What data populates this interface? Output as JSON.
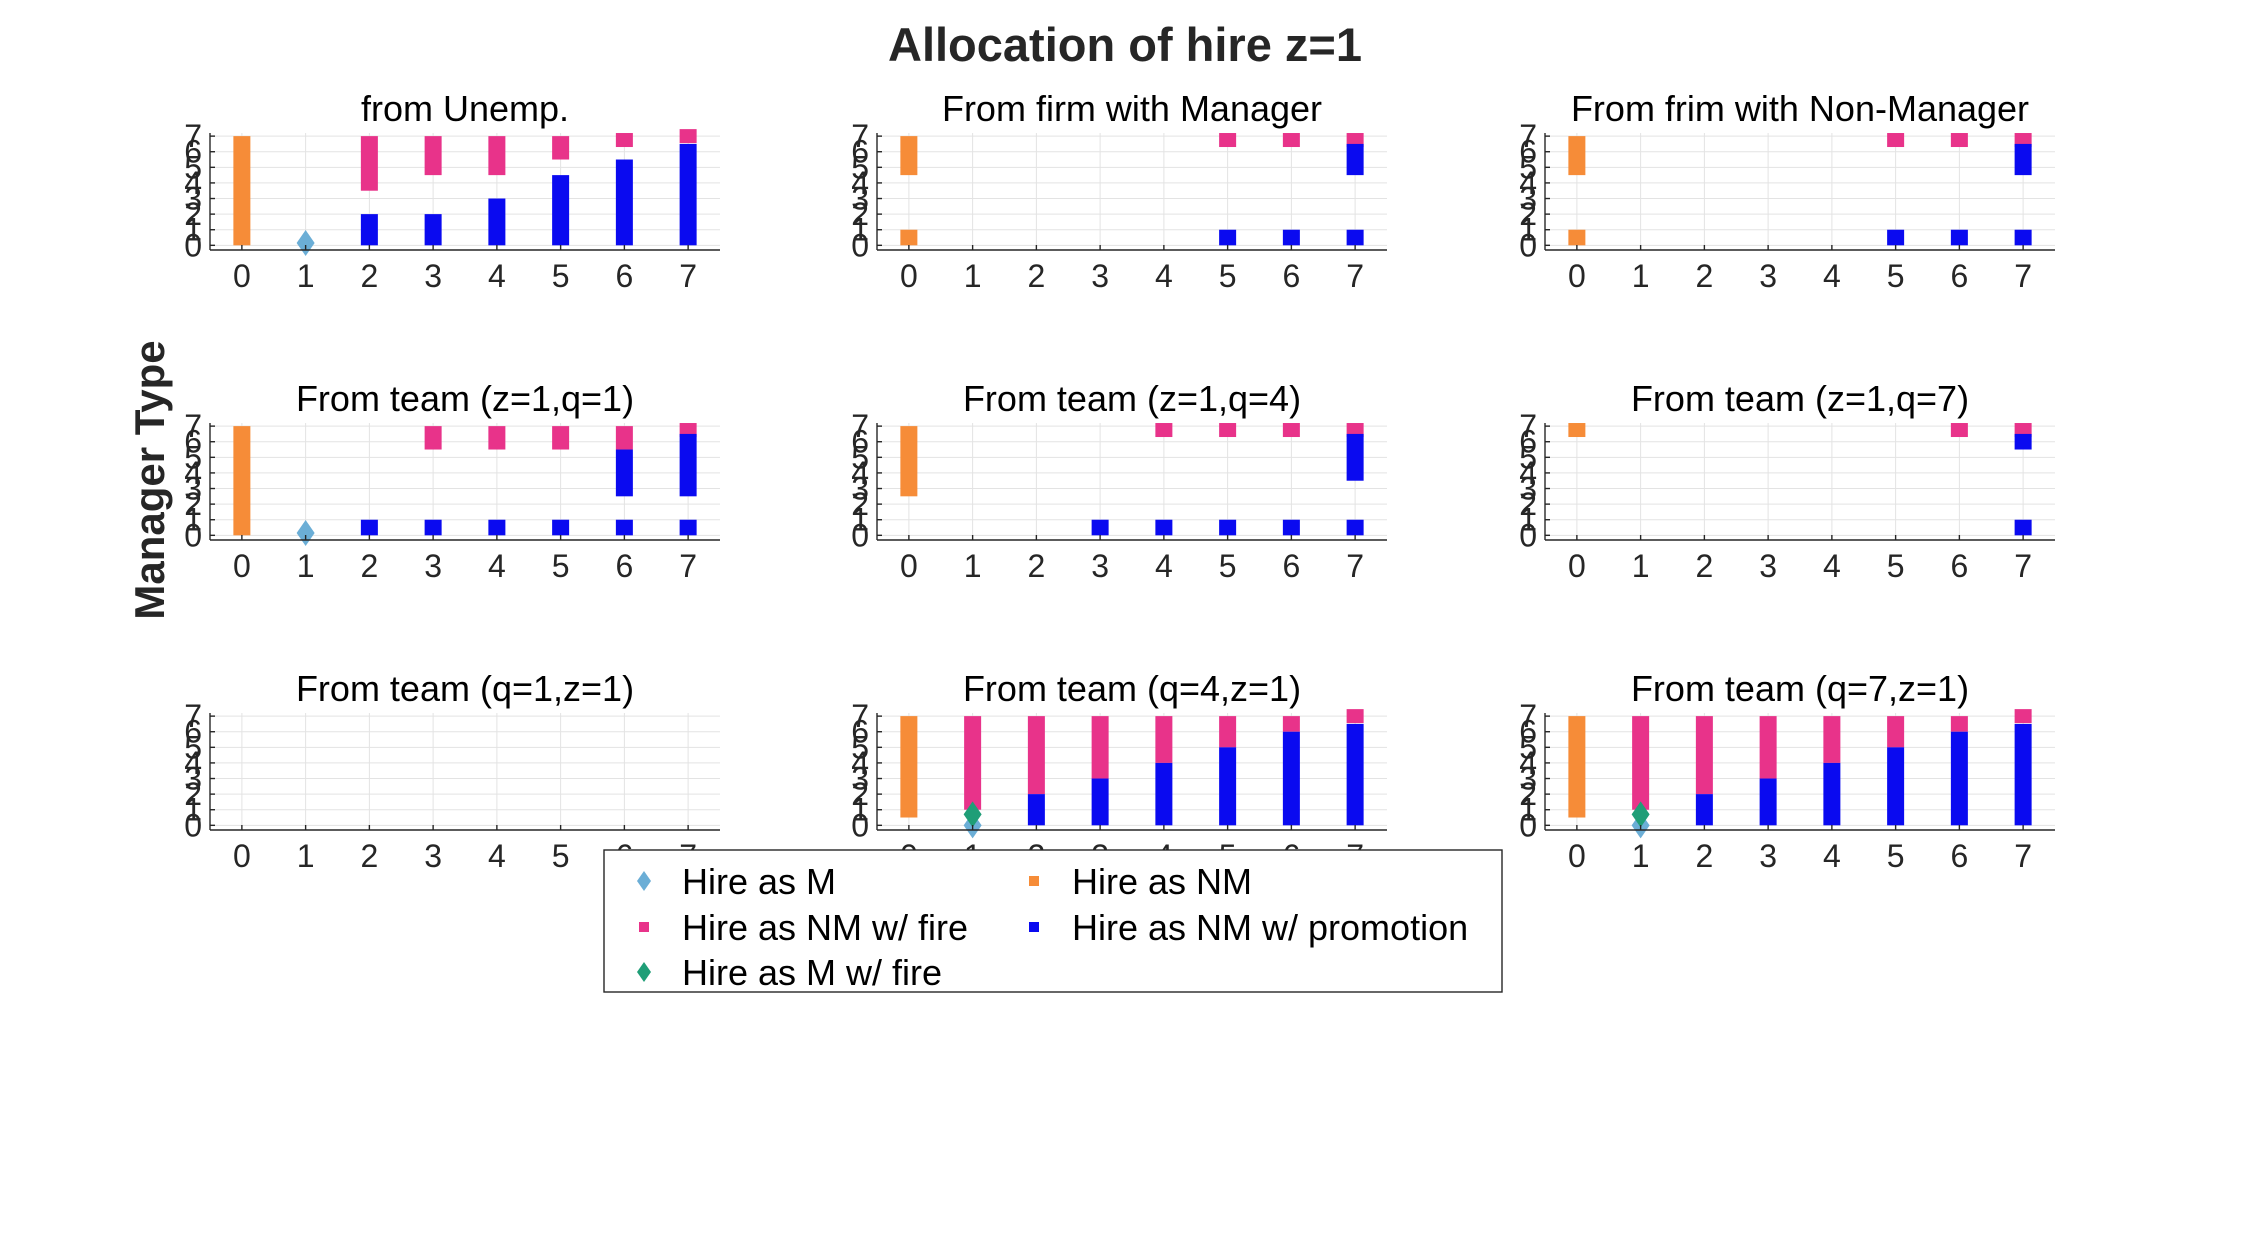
{
  "figure": {
    "title": "Allocation of hire z=1",
    "ylabel": "Manager Type"
  },
  "legend": {
    "placement": "bottom-center",
    "entries": [
      {
        "key": "m",
        "label": "Hire as M",
        "marker": "diamond",
        "color": "#6BAED6"
      },
      {
        "key": "nm",
        "label": "Hire as NM",
        "marker": "square",
        "color": "#F68C38"
      },
      {
        "key": "nmfire",
        "label": "Hire as NM w/ fire",
        "marker": "square",
        "color": "#E8338A"
      },
      {
        "key": "nmpromo",
        "label": "Hire as NM w/ promotion",
        "marker": "square",
        "color": "#0A0AF0"
      },
      {
        "key": "mfire",
        "label": "Hire as M w/ fire",
        "marker": "diamond",
        "color": "#1F9E77"
      }
    ]
  },
  "chart_data": [
    {
      "type": "scatter",
      "title": "from Unemp.",
      "xlim": [
        -0.5,
        7.5
      ],
      "ylim": [
        -0.3,
        7.2
      ],
      "xticks": [
        0,
        1,
        2,
        3,
        4,
        5,
        6,
        7
      ],
      "yticks": [
        0,
        1,
        2,
        3,
        4,
        5,
        6,
        7
      ],
      "grid": true,
      "series": [
        {
          "key": "nm",
          "segments": [
            [
              0,
              0,
              7
            ]
          ]
        },
        {
          "key": "nmfire",
          "segments": [
            [
              2,
              3.5,
              7
            ],
            [
              3,
              4.5,
              7
            ],
            [
              4,
              4.5,
              7
            ],
            [
              5,
              5.5,
              7
            ],
            [
              6,
              6.5,
              7
            ],
            [
              7,
              7,
              7
            ]
          ]
        },
        {
          "key": "nmpromo",
          "segments": [
            [
              2,
              0,
              2
            ],
            [
              3,
              0,
              2
            ],
            [
              4,
              0,
              3
            ],
            [
              5,
              0,
              4.5
            ],
            [
              6,
              0,
              5.5
            ],
            [
              7,
              0,
              6.5
            ]
          ]
        },
        {
          "key": "m",
          "points": [
            [
              1,
              0.15
            ]
          ]
        }
      ]
    },
    {
      "type": "scatter",
      "title": "From firm with Manager",
      "xlim": [
        -0.5,
        7.5
      ],
      "ylim": [
        -0.3,
        7.2
      ],
      "xticks": [
        0,
        1,
        2,
        3,
        4,
        5,
        6,
        7
      ],
      "yticks": [
        0,
        1,
        2,
        3,
        4,
        5,
        6,
        7
      ],
      "grid": true,
      "series": [
        {
          "key": "nm",
          "segments": [
            [
              0,
              0,
              1
            ],
            [
              0,
              4.5,
              7
            ]
          ]
        },
        {
          "key": "nmfire",
          "segments": [
            [
              5,
              6.5,
              7
            ],
            [
              6,
              6.5,
              7
            ],
            [
              7,
              6.5,
              7
            ]
          ]
        },
        {
          "key": "nmpromo",
          "segments": [
            [
              5,
              0,
              1
            ],
            [
              6,
              0,
              1
            ],
            [
              7,
              0,
              1
            ],
            [
              7,
              4.5,
              6.5
            ]
          ]
        }
      ]
    },
    {
      "type": "scatter",
      "title": "From frim with Non-Manager",
      "xlim": [
        -0.5,
        7.5
      ],
      "ylim": [
        -0.3,
        7.2
      ],
      "xticks": [
        0,
        1,
        2,
        3,
        4,
        5,
        6,
        7
      ],
      "yticks": [
        0,
        1,
        2,
        3,
        4,
        5,
        6,
        7
      ],
      "grid": true,
      "series": [
        {
          "key": "nm",
          "segments": [
            [
              0,
              0,
              1
            ],
            [
              0,
              4.5,
              7
            ]
          ]
        },
        {
          "key": "nmfire",
          "segments": [
            [
              5,
              6.5,
              7
            ],
            [
              6,
              6.5,
              7
            ],
            [
              7,
              6.5,
              7
            ]
          ]
        },
        {
          "key": "nmpromo",
          "segments": [
            [
              5,
              0,
              1
            ],
            [
              6,
              0,
              1
            ],
            [
              7,
              0,
              1
            ],
            [
              7,
              4.5,
              6.5
            ]
          ]
        }
      ]
    },
    {
      "type": "scatter",
      "title": "From team (z=1,q=1)",
      "xlim": [
        -0.5,
        7.5
      ],
      "ylim": [
        -0.3,
        7.2
      ],
      "xticks": [
        0,
        1,
        2,
        3,
        4,
        5,
        6,
        7
      ],
      "yticks": [
        0,
        1,
        2,
        3,
        4,
        5,
        6,
        7
      ],
      "grid": true,
      "series": [
        {
          "key": "nm",
          "segments": [
            [
              0,
              0,
              7
            ]
          ]
        },
        {
          "key": "nmfire",
          "segments": [
            [
              3,
              5.5,
              7
            ],
            [
              4,
              5.5,
              7
            ],
            [
              5,
              5.5,
              7
            ],
            [
              6,
              5.5,
              7
            ],
            [
              7,
              6.5,
              7
            ]
          ]
        },
        {
          "key": "nmpromo",
          "segments": [
            [
              2,
              0,
              1
            ],
            [
              3,
              0,
              1
            ],
            [
              4,
              0,
              1
            ],
            [
              5,
              0,
              1
            ],
            [
              6,
              0,
              1
            ],
            [
              7,
              0,
              1
            ],
            [
              6,
              2.5,
              5.5
            ],
            [
              7,
              2.5,
              6.5
            ]
          ]
        },
        {
          "key": "m",
          "points": [
            [
              1,
              0.15
            ]
          ]
        }
      ]
    },
    {
      "type": "scatter",
      "title": "From team (z=1,q=4)",
      "xlim": [
        -0.5,
        7.5
      ],
      "ylim": [
        -0.3,
        7.2
      ],
      "xticks": [
        0,
        1,
        2,
        3,
        4,
        5,
        6,
        7
      ],
      "yticks": [
        0,
        1,
        2,
        3,
        4,
        5,
        6,
        7
      ],
      "grid": true,
      "series": [
        {
          "key": "nm",
          "segments": [
            [
              0,
              2.5,
              7
            ]
          ]
        },
        {
          "key": "nmfire",
          "segments": [
            [
              4,
              6.5,
              7
            ],
            [
              5,
              6.5,
              7
            ],
            [
              6,
              6.5,
              7
            ],
            [
              7,
              6.5,
              7
            ]
          ]
        },
        {
          "key": "nmpromo",
          "segments": [
            [
              3,
              0,
              1
            ],
            [
              4,
              0,
              1
            ],
            [
              5,
              0,
              1
            ],
            [
              6,
              0,
              1
            ],
            [
              7,
              0,
              1
            ],
            [
              7,
              3.5,
              6.5
            ]
          ]
        }
      ]
    },
    {
      "type": "scatter",
      "title": "From team (z=1,q=7)",
      "xlim": [
        -0.5,
        7.5
      ],
      "ylim": [
        -0.3,
        7.2
      ],
      "xticks": [
        0,
        1,
        2,
        3,
        4,
        5,
        6,
        7
      ],
      "yticks": [
        0,
        1,
        2,
        3,
        4,
        5,
        6,
        7
      ],
      "grid": true,
      "series": [
        {
          "key": "nm",
          "segments": [
            [
              0,
              6.5,
              7
            ]
          ]
        },
        {
          "key": "nmfire",
          "segments": [
            [
              6,
              6.5,
              7
            ],
            [
              7,
              6.5,
              7
            ]
          ]
        },
        {
          "key": "nmpromo",
          "segments": [
            [
              7,
              0,
              1
            ],
            [
              7,
              5.5,
              6.5
            ]
          ]
        }
      ]
    },
    {
      "type": "scatter",
      "title": "From team (q=1,z=1)",
      "xlim": [
        -0.5,
        7.5
      ],
      "ylim": [
        -0.3,
        7.2
      ],
      "xticks": [
        0,
        1,
        2,
        3,
        4,
        5,
        6,
        7
      ],
      "yticks": [
        0,
        1,
        2,
        3,
        4,
        5,
        6,
        7
      ],
      "grid": true,
      "series": []
    },
    {
      "type": "scatter",
      "title": "From team (q=4,z=1)",
      "xlim": [
        -0.5,
        7.5
      ],
      "ylim": [
        -0.3,
        7.2
      ],
      "xticks": [
        0,
        1,
        2,
        3,
        4,
        5,
        6,
        7
      ],
      "yticks": [
        0,
        1,
        2,
        3,
        4,
        5,
        6,
        7
      ],
      "grid": true,
      "series": [
        {
          "key": "nm",
          "segments": [
            [
              0,
              0.5,
              7
            ]
          ]
        },
        {
          "key": "nmfire",
          "segments": [
            [
              1,
              1,
              7
            ],
            [
              2,
              2,
              7
            ],
            [
              3,
              3,
              7
            ],
            [
              4,
              4,
              7
            ],
            [
              5,
              5,
              7
            ],
            [
              6,
              6,
              7
            ],
            [
              7,
              7,
              7
            ]
          ]
        },
        {
          "key": "nmpromo",
          "segments": [
            [
              2,
              0,
              2
            ],
            [
              3,
              0,
              3
            ],
            [
              4,
              0,
              4
            ],
            [
              5,
              0,
              5
            ],
            [
              6,
              0,
              6
            ],
            [
              7,
              0,
              6.5
            ]
          ]
        },
        {
          "key": "m",
          "points": [
            [
              1,
              0
            ]
          ]
        },
        {
          "key": "mfire",
          "points": [
            [
              1,
              0.7
            ]
          ]
        }
      ]
    },
    {
      "type": "scatter",
      "title": "From team (q=7,z=1)",
      "xlim": [
        -0.5,
        7.5
      ],
      "ylim": [
        -0.3,
        7.2
      ],
      "xticks": [
        0,
        1,
        2,
        3,
        4,
        5,
        6,
        7
      ],
      "yticks": [
        0,
        1,
        2,
        3,
        4,
        5,
        6,
        7
      ],
      "grid": true,
      "series": [
        {
          "key": "nm",
          "segments": [
            [
              0,
              0.5,
              7
            ]
          ]
        },
        {
          "key": "nmfire",
          "segments": [
            [
              1,
              1,
              7
            ],
            [
              2,
              2,
              7
            ],
            [
              3,
              3,
              7
            ],
            [
              4,
              4,
              7
            ],
            [
              5,
              5,
              7
            ],
            [
              6,
              6,
              7
            ],
            [
              7,
              7,
              7
            ]
          ]
        },
        {
          "key": "nmpromo",
          "segments": [
            [
              2,
              0,
              2
            ],
            [
              3,
              0,
              3
            ],
            [
              4,
              0,
              4
            ],
            [
              5,
              0,
              5
            ],
            [
              6,
              0,
              6
            ],
            [
              7,
              0,
              6.5
            ]
          ]
        },
        {
          "key": "m",
          "points": [
            [
              1,
              0
            ]
          ]
        },
        {
          "key": "mfire",
          "points": [
            [
              1,
              0.7
            ]
          ]
        }
      ]
    }
  ]
}
